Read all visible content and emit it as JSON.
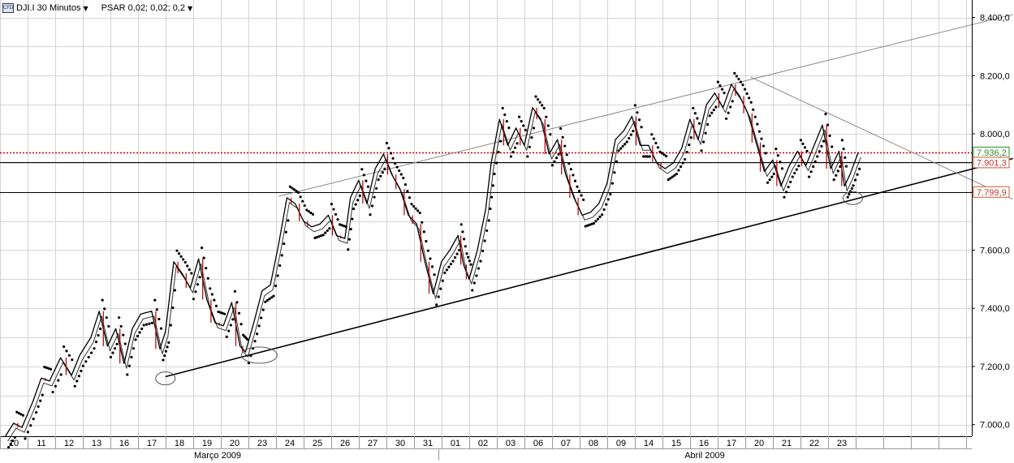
{
  "toolbar": {
    "instrument_icon": "cfd-icon",
    "instrument_icon_label": "CFD",
    "symbol": "DJI.I 30 Minutos",
    "indicator": "PSAR 0,02; 0,02; 0,2",
    "dropdown_icon": "chevron-down-icon"
  },
  "colors": {
    "background": "#ffffff",
    "grid": "#d4d4d4",
    "price_line": "#000000",
    "bar_down": "#b00000",
    "psar_dot": "#000000",
    "ref_line_dotted": "#cc0000",
    "last_price_label": "#2e8b2e"
  },
  "chart_data": {
    "type": "line",
    "title": "",
    "xlabel": "",
    "ylabel": "",
    "ylim": [
      6960,
      8460
    ],
    "y_ticks": [
      "7.000,0",
      "7.200,0",
      "7.400,0",
      "7.600,0",
      "7.800,0",
      "8.000,0",
      "8.200,0",
      "8.400,0"
    ],
    "y_tick_values": [
      7000,
      7200,
      7400,
      7600,
      7800,
      8000,
      8200,
      8400
    ],
    "x_day_labels": [
      "10",
      "11",
      "12",
      "13",
      "16",
      "17",
      "18",
      "19",
      "20",
      "23",
      "24",
      "25",
      "26",
      "27",
      "30",
      "31",
      "01",
      "02",
      "03",
      "06",
      "07",
      "08",
      "09",
      "14",
      "15",
      "16",
      "17",
      "20",
      "21",
      "22",
      "23"
    ],
    "x_months": [
      "Março 2009",
      "Abril 2009"
    ],
    "price_labels": [
      {
        "text": "7.936,2",
        "value": 7936.2,
        "style": "last"
      },
      {
        "text": "7.901,3",
        "value": 7901.3,
        "style": "level"
      },
      {
        "text": "7.799,9",
        "value": 7799.9,
        "style": "level"
      }
    ],
    "horizontal_levels": [
      {
        "value": 7936.2,
        "style": "dotted-red"
      },
      {
        "value": 7901.3,
        "style": "solid"
      },
      {
        "value": 7799.9,
        "style": "solid"
      }
    ],
    "series": [
      {
        "values": [
          {
            "d": -0.6,
            "v": 6960
          },
          {
            "d": -0.3,
            "v": 7005
          },
          {
            "d": 0.0,
            "v": 6990
          },
          {
            "d": 0.4,
            "v": 7080
          },
          {
            "d": 0.7,
            "v": 7160
          },
          {
            "d": 1.0,
            "v": 7150
          },
          {
            "d": 1.4,
            "v": 7230
          },
          {
            "d": 1.8,
            "v": 7170
          },
          {
            "d": 2.1,
            "v": 7240
          },
          {
            "d": 2.5,
            "v": 7300
          },
          {
            "d": 2.8,
            "v": 7390
          },
          {
            "d": 3.1,
            "v": 7270
          },
          {
            "d": 3.4,
            "v": 7330
          },
          {
            "d": 3.7,
            "v": 7210
          },
          {
            "d": 4.0,
            "v": 7330
          },
          {
            "d": 4.3,
            "v": 7380
          },
          {
            "d": 4.7,
            "v": 7390
          },
          {
            "d": 5.0,
            "v": 7260
          },
          {
            "d": 5.2,
            "v": 7320
          },
          {
            "d": 5.5,
            "v": 7560
          },
          {
            "d": 5.8,
            "v": 7520
          },
          {
            "d": 6.1,
            "v": 7470
          },
          {
            "d": 6.4,
            "v": 7570
          },
          {
            "d": 6.7,
            "v": 7430
          },
          {
            "d": 7.0,
            "v": 7350
          },
          {
            "d": 7.3,
            "v": 7340
          },
          {
            "d": 7.6,
            "v": 7420
          },
          {
            "d": 7.9,
            "v": 7270
          },
          {
            "d": 8.1,
            "v": 7250
          },
          {
            "d": 8.4,
            "v": 7350
          },
          {
            "d": 8.7,
            "v": 7460
          },
          {
            "d": 9.0,
            "v": 7480
          },
          {
            "d": 9.3,
            "v": 7620
          },
          {
            "d": 9.6,
            "v": 7780
          },
          {
            "d": 9.9,
            "v": 7760
          },
          {
            "d": 10.2,
            "v": 7700
          },
          {
            "d": 10.5,
            "v": 7680
          },
          {
            "d": 10.8,
            "v": 7690
          },
          {
            "d": 11.1,
            "v": 7720
          },
          {
            "d": 11.4,
            "v": 7650
          },
          {
            "d": 11.7,
            "v": 7640
          },
          {
            "d": 11.9,
            "v": 7780
          },
          {
            "d": 12.2,
            "v": 7840
          },
          {
            "d": 12.5,
            "v": 7760
          },
          {
            "d": 12.8,
            "v": 7880
          },
          {
            "d": 13.1,
            "v": 7930
          },
          {
            "d": 13.4,
            "v": 7860
          },
          {
            "d": 13.7,
            "v": 7810
          },
          {
            "d": 14.0,
            "v": 7720
          },
          {
            "d": 14.3,
            "v": 7690
          },
          {
            "d": 14.6,
            "v": 7560
          },
          {
            "d": 14.9,
            "v": 7450
          },
          {
            "d": 15.2,
            "v": 7560
          },
          {
            "d": 15.5,
            "v": 7600
          },
          {
            "d": 15.8,
            "v": 7650
          },
          {
            "d": 16.0,
            "v": 7550
          },
          {
            "d": 16.2,
            "v": 7500
          },
          {
            "d": 16.5,
            "v": 7600
          },
          {
            "d": 16.8,
            "v": 7740
          },
          {
            "d": 17.0,
            "v": 7900
          },
          {
            "d": 17.3,
            "v": 8050
          },
          {
            "d": 17.6,
            "v": 7960
          },
          {
            "d": 17.9,
            "v": 8020
          },
          {
            "d": 18.2,
            "v": 7960
          },
          {
            "d": 18.5,
            "v": 8090
          },
          {
            "d": 18.8,
            "v": 8050
          },
          {
            "d": 19.1,
            "v": 7930
          },
          {
            "d": 19.4,
            "v": 7980
          },
          {
            "d": 19.7,
            "v": 7860
          },
          {
            "d": 20.0,
            "v": 7780
          },
          {
            "d": 20.3,
            "v": 7720
          },
          {
            "d": 20.6,
            "v": 7730
          },
          {
            "d": 20.9,
            "v": 7760
          },
          {
            "d": 21.2,
            "v": 7830
          },
          {
            "d": 21.5,
            "v": 7980
          },
          {
            "d": 21.8,
            "v": 8010
          },
          {
            "d": 22.1,
            "v": 8060
          },
          {
            "d": 22.4,
            "v": 7960
          },
          {
            "d": 22.7,
            "v": 7960
          },
          {
            "d": 23.0,
            "v": 7900
          },
          {
            "d": 23.3,
            "v": 7880
          },
          {
            "d": 23.6,
            "v": 7900
          },
          {
            "d": 23.9,
            "v": 7950
          },
          {
            "d": 24.2,
            "v": 8050
          },
          {
            "d": 24.5,
            "v": 7980
          },
          {
            "d": 24.8,
            "v": 8100
          },
          {
            "d": 25.1,
            "v": 8140
          },
          {
            "d": 25.4,
            "v": 8090
          },
          {
            "d": 25.7,
            "v": 8170
          },
          {
            "d": 26.0,
            "v": 8130
          },
          {
            "d": 26.3,
            "v": 8070
          },
          {
            "d": 26.6,
            "v": 7970
          },
          {
            "d": 26.9,
            "v": 7870
          },
          {
            "d": 27.2,
            "v": 7910
          },
          {
            "d": 27.5,
            "v": 7820
          },
          {
            "d": 27.8,
            "v": 7890
          },
          {
            "d": 28.1,
            "v": 7940
          },
          {
            "d": 28.4,
            "v": 7890
          },
          {
            "d": 28.7,
            "v": 7960
          },
          {
            "d": 29.0,
            "v": 8030
          },
          {
            "d": 29.3,
            "v": 7880
          },
          {
            "d": 29.6,
            "v": 7940
          },
          {
            "d": 29.8,
            "v": 7820
          },
          {
            "d": 30.0,
            "v": 7860
          },
          {
            "d": 30.3,
            "v": 7936
          }
        ]
      }
    ],
    "trendlines": [
      {
        "from": {
          "d": 5.2,
          "v": 7165
        },
        "to": {
          "d": 35.9,
          "v": 7915
        }
      },
      {
        "from": {
          "d": 9.3,
          "v": 7785
        },
        "to": {
          "d": 35.9,
          "v": 8410
        }
      },
      {
        "from": {
          "d": 26.4,
          "v": 8195
        },
        "to": {
          "d": 35.9,
          "v": 7775
        }
      }
    ],
    "highlight_circles": [
      {
        "d": 5.2,
        "v": 7170
      },
      {
        "d": 8.6,
        "v": 7250
      },
      {
        "d": 30.1,
        "v": 7790
      }
    ]
  }
}
